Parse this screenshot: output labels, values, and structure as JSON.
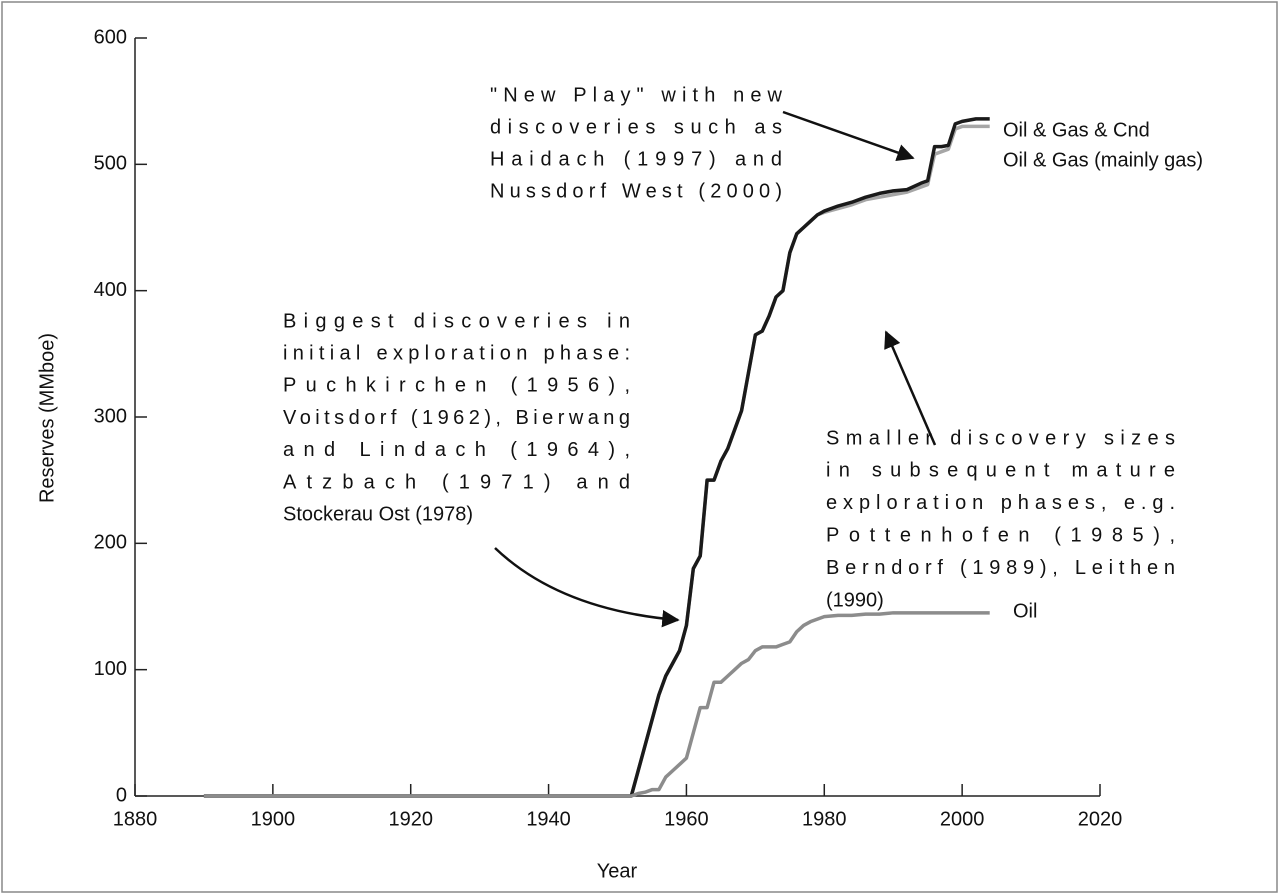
{
  "chart_data": {
    "type": "line",
    "xlabel": "Year",
    "ylabel": "Reserves (MMboe)",
    "xlim": [
      1880,
      2020
    ],
    "xticks": [
      1880,
      1900,
      1920,
      1940,
      1960,
      1980,
      2000,
      2020
    ],
    "ylim": [
      0,
      600
    ],
    "yticks": [
      0,
      100,
      200,
      300,
      400,
      500,
      600
    ],
    "x": [
      1890,
      1950,
      1952,
      1953,
      1954,
      1955,
      1956,
      1957,
      1958,
      1959,
      1960,
      1961,
      1962,
      1963,
      1964,
      1965,
      1966,
      1967,
      1968,
      1969,
      1970,
      1971,
      1972,
      1973,
      1974,
      1975,
      1976,
      1977,
      1978,
      1979,
      1980,
      1982,
      1984,
      1986,
      1988,
      1990,
      1992,
      1994,
      1995,
      1996,
      1997,
      1998,
      1999,
      2000,
      2001,
      2002,
      2004
    ],
    "series": [
      {
        "name": "Oil & Gas (mainly gas)",
        "color": "#a6a6a6",
        "values": [
          0,
          0,
          0,
          20,
          40,
          60,
          80,
          95,
          105,
          115,
          135,
          180,
          190,
          250,
          250,
          265,
          275,
          290,
          305,
          335,
          365,
          368,
          380,
          395,
          400,
          430,
          445,
          450,
          455,
          460,
          462,
          465,
          468,
          472,
          474,
          476,
          478,
          482,
          484,
          508,
          510,
          512,
          528,
          530,
          530,
          530,
          530
        ]
      },
      {
        "name": "Oil & Gas & Cnd",
        "color": "#1a1a1a",
        "values": [
          0,
          0,
          0,
          20,
          40,
          60,
          80,
          95,
          105,
          115,
          135,
          180,
          190,
          250,
          250,
          265,
          275,
          290,
          305,
          335,
          365,
          368,
          380,
          395,
          400,
          430,
          445,
          450,
          455,
          460,
          463,
          467,
          470,
          474,
          477,
          479,
          480,
          485,
          487,
          514,
          514,
          515,
          532,
          534,
          535,
          536,
          536
        ]
      },
      {
        "name": "Oil",
        "color": "#8c8c8c",
        "values": [
          0,
          0,
          0,
          2,
          3,
          5,
          5,
          15,
          20,
          25,
          30,
          50,
          70,
          70,
          90,
          90,
          95,
          100,
          105,
          108,
          115,
          118,
          118,
          118,
          120,
          122,
          130,
          135,
          138,
          140,
          142,
          143,
          143,
          144,
          144,
          145,
          145,
          145,
          145,
          145,
          145,
          145,
          145,
          145,
          145,
          145,
          145
        ]
      }
    ],
    "annotations": [
      [
        "\"New Play\" with new",
        "discoveries such as",
        "Haidach (1997) and",
        "Nussdorf West (2000)"
      ],
      [
        "Biggest discoveries in",
        "initial exploration phase:",
        "Puchkirchen (1956),",
        "Voitsdorf (1962), Bierwang",
        "and Lindach (1964),",
        "Atzbach (1971) and",
        "Stockerau Ost (1978)"
      ],
      [
        "Smaller discovery sizes",
        "in subsequent mature",
        "exploration phases, e.g.",
        "Pottenhofen (1985),",
        "Berndorf (1989), Leithen",
        "(1990)"
      ]
    ]
  }
}
